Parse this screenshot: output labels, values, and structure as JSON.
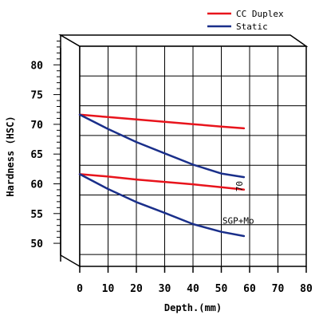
{
  "chart_data": {
    "type": "line",
    "title": "",
    "xlabel": "Depth.(mm)",
    "ylabel": "Hardness (HSC)",
    "xlim": [
      0,
      80
    ],
    "ylim": [
      48,
      85
    ],
    "xticks": [
      0,
      10,
      20,
      30,
      40,
      50,
      60,
      70,
      80
    ],
    "yticks": [
      50,
      55,
      60,
      65,
      70,
      75,
      80
    ],
    "grid": true,
    "legend_position": "top-right",
    "series": [
      {
        "name": "CC Duplex",
        "color": "#e8141c",
        "group": "70",
        "x": [
          0,
          10,
          20,
          30,
          40,
          50,
          58
        ],
        "y": [
          73.5,
          73.1,
          72.7,
          72.3,
          71.9,
          71.5,
          71.2
        ]
      },
      {
        "name": "Static",
        "color": "#1a2f8a",
        "group": "70",
        "x": [
          0,
          10,
          20,
          30,
          40,
          50,
          58
        ],
        "y": [
          73.5,
          71.1,
          68.9,
          67.0,
          65.1,
          63.6,
          63.0
        ]
      },
      {
        "name": "CC Duplex",
        "color": "#e8141c",
        "group": "SGP+Mo",
        "x": [
          0,
          10,
          20,
          30,
          40,
          50,
          58
        ],
        "y": [
          63.5,
          63.1,
          62.6,
          62.2,
          61.8,
          61.3,
          60.9
        ]
      },
      {
        "name": "Static",
        "color": "#1a2f8a",
        "group": "SGP+Mo",
        "x": [
          0,
          10,
          20,
          30,
          40,
          50,
          58
        ],
        "y": [
          63.5,
          61.0,
          58.8,
          57.0,
          55.1,
          53.8,
          53.1
        ]
      }
    ],
    "legend": [
      {
        "label": "CC Duplex",
        "color": "#e8141c"
      },
      {
        "label": "Static",
        "color": "#1a2f8a"
      }
    ],
    "annotations": [
      {
        "text": "70",
        "x": 58,
        "y": 62.0
      },
      {
        "text": "SGP+Mo",
        "x": 56,
        "y": 55.2
      }
    ]
  }
}
